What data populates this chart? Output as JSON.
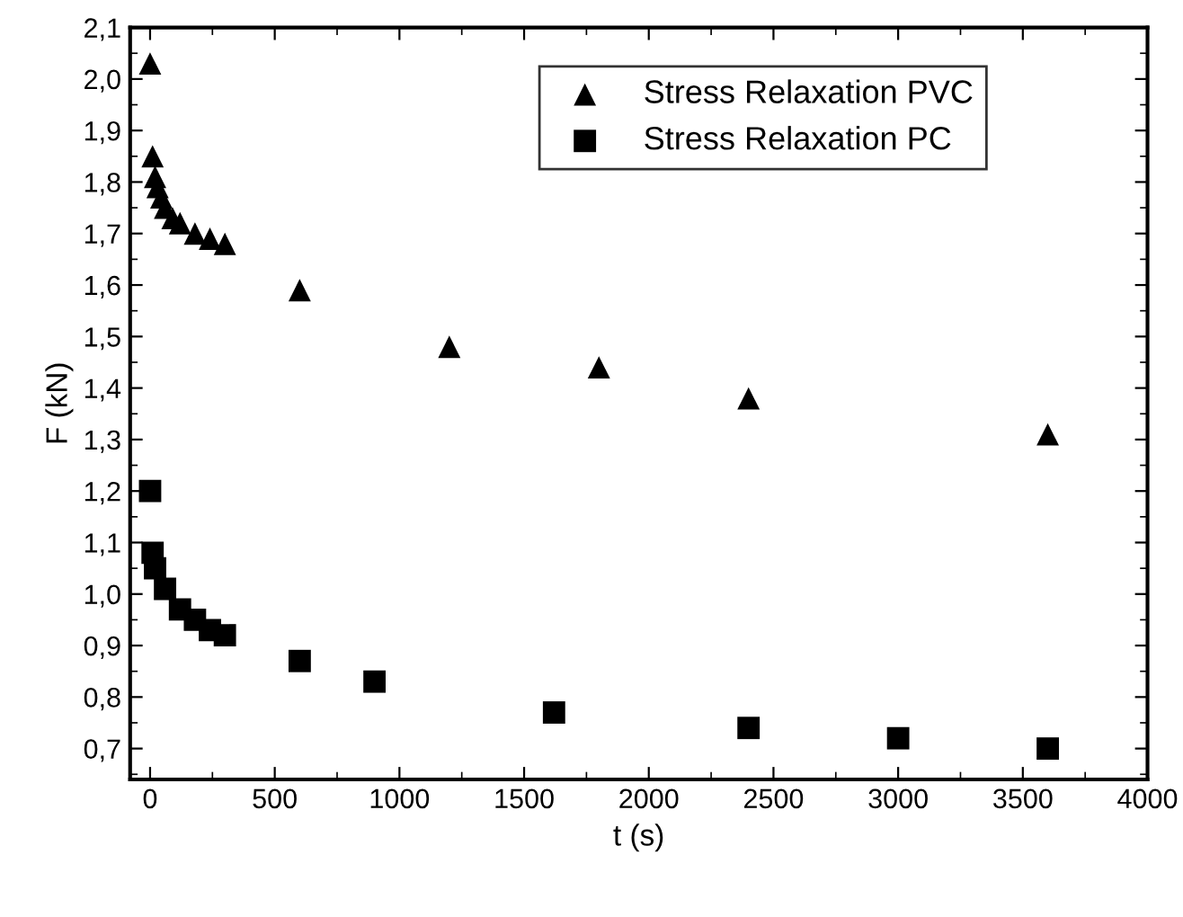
{
  "chart_data": {
    "type": "scatter",
    "xlabel": "t (s)",
    "ylabel": "F (kN)",
    "xlim": [
      -80,
      4000
    ],
    "ylim": [
      0.64,
      2.1
    ],
    "xticks": [
      0,
      500,
      1000,
      1500,
      2000,
      2500,
      3000,
      3500,
      4000
    ],
    "yticks": [
      {
        "value": 0.7,
        "label": "0,7"
      },
      {
        "value": 0.8,
        "label": "0,8"
      },
      {
        "value": 0.9,
        "label": "0,9"
      },
      {
        "value": 1.0,
        "label": "1,0"
      },
      {
        "value": 1.1,
        "label": "1,1"
      },
      {
        "value": 1.2,
        "label": "1,2"
      },
      {
        "value": 1.3,
        "label": "1,3"
      },
      {
        "value": 1.4,
        "label": "1,4"
      },
      {
        "value": 1.5,
        "label": "1,5"
      },
      {
        "value": 1.6,
        "label": "1,6"
      },
      {
        "value": 1.7,
        "label": "1,7"
      },
      {
        "value": 1.8,
        "label": "1,8"
      },
      {
        "value": 1.9,
        "label": "1,9"
      },
      {
        "value": 2.0,
        "label": "2,0"
      },
      {
        "value": 2.1,
        "label": "2,1"
      }
    ],
    "legend": "top right",
    "grid": false,
    "series": [
      {
        "name": "Stress Relaxation PVC",
        "color": "#000000",
        "marker": "triangle",
        "x": [
          0,
          10,
          20,
          30,
          45,
          60,
          90,
          120,
          180,
          240,
          300,
          600,
          1200,
          1800,
          2400,
          3600
        ],
        "values": [
          2.03,
          1.85,
          1.81,
          1.79,
          1.77,
          1.75,
          1.73,
          1.72,
          1.7,
          1.69,
          1.68,
          1.59,
          1.48,
          1.44,
          1.38,
          1.31
        ]
      },
      {
        "name": "Stress Relaxation PC",
        "color": "#000000",
        "marker": "square",
        "x": [
          0,
          10,
          20,
          30,
          45,
          60,
          120,
          180,
          240,
          300,
          600,
          900,
          1620,
          2400,
          3000,
          3600
        ],
        "values": [
          1.2,
          1.08,
          1.05,
          null,
          null,
          1.01,
          0.97,
          0.95,
          0.93,
          0.92,
          0.87,
          0.83,
          0.77,
          0.74,
          0.72,
          0.7
        ]
      }
    ]
  }
}
